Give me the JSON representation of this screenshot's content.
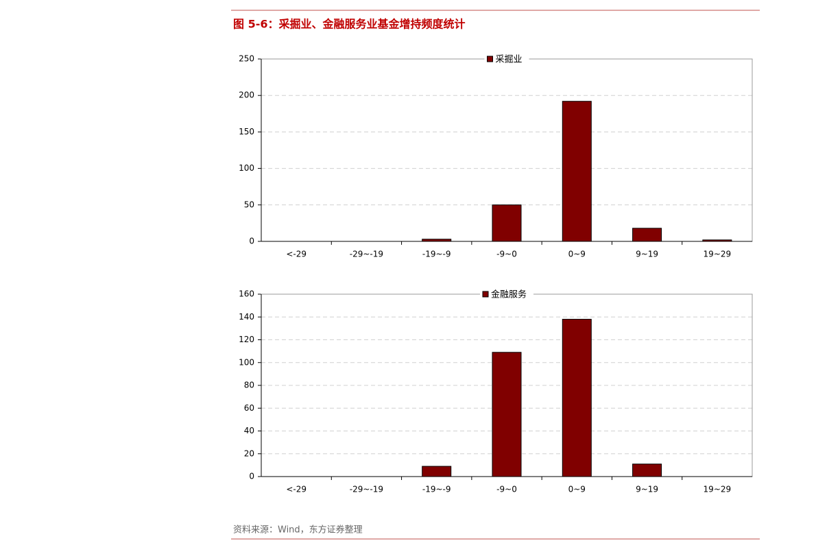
{
  "title": "图 5-6：采掘业、金融服务业基金增持频度统计",
  "source": "资料来源：Wind，东方证券整理",
  "chart_data": [
    {
      "type": "bar",
      "categories": [
        "<-29",
        "-29~-19",
        "-19~-9",
        "-9~0",
        "0~9",
        "9~19",
        "19~29"
      ],
      "series": [
        {
          "name": "采掘业",
          "color": "#800000",
          "values": [
            0,
            0,
            3,
            50,
            192,
            18,
            2
          ]
        }
      ],
      "ylim": [
        0,
        250
      ],
      "yticks": [
        0,
        50,
        100,
        150,
        200,
        250
      ],
      "grid": true,
      "legend": "top"
    },
    {
      "type": "bar",
      "categories": [
        "<-29",
        "-29~-19",
        "-19~-9",
        "-9~0",
        "0~9",
        "9~19",
        "19~29"
      ],
      "series": [
        {
          "name": "金融服务",
          "color": "#800000",
          "values": [
            0,
            0,
            9,
            109,
            138,
            11,
            0
          ]
        }
      ],
      "ylim": [
        0,
        160
      ],
      "yticks": [
        0,
        20,
        40,
        60,
        80,
        100,
        120,
        140,
        160
      ],
      "grid": true,
      "legend": "top"
    }
  ]
}
